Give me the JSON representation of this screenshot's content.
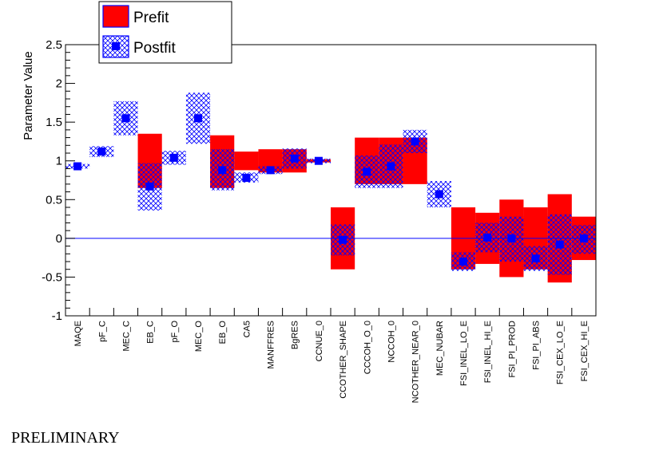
{
  "chart_data": {
    "type": "error-band",
    "title": "",
    "xlabel": "",
    "ylabel": "Parameter Value",
    "ylim": [
      -1,
      2.5
    ],
    "yticks": [
      "-1",
      "-0.5",
      "0",
      "0.5",
      "1",
      "1.5",
      "2",
      "2.5"
    ],
    "reference_line": 0,
    "categories": [
      "MAQE",
      "pF_C",
      "MEC_C",
      "EB_C",
      "pF_O",
      "MEC_O",
      "EB_O",
      "CA5",
      "MANFFRES",
      "BgRES",
      "CCNUE_0",
      "CCOTHER_SHAPE",
      "CCCOH_O_0",
      "NCCOH_0",
      "NCOTHER_NEAR_0",
      "MEC_NUBAR",
      "FSI_INEL_LO_E",
      "FSI_INEL_HI_E",
      "FSI_PI_PROD",
      "FSI_PI_ABS",
      "FSI_CEX_LO_E",
      "FSI_CEX_HI_E"
    ],
    "series": [
      {
        "name": "Prefit",
        "color": "#ff0000",
        "style": "solid",
        "low": [
          null,
          null,
          null,
          0.65,
          null,
          null,
          0.65,
          0.88,
          0.85,
          0.85,
          0.98,
          -0.4,
          0.7,
          0.7,
          0.7,
          null,
          -0.4,
          -0.33,
          -0.5,
          -0.4,
          -0.57,
          -0.28
        ],
        "high": [
          null,
          null,
          null,
          1.35,
          null,
          null,
          1.33,
          1.12,
          1.15,
          1.15,
          1.02,
          0.4,
          1.3,
          1.3,
          1.3,
          null,
          0.4,
          0.33,
          0.5,
          0.4,
          0.57,
          0.28
        ]
      },
      {
        "name": "Postfit",
        "color": "#0000ff",
        "style": "crosshatch",
        "values": [
          0.93,
          1.12,
          1.55,
          0.67,
          1.04,
          1.55,
          0.88,
          0.78,
          0.88,
          1.03,
          1.0,
          -0.02,
          0.86,
          0.93,
          1.25,
          0.57,
          -0.3,
          0.01,
          0.0,
          -0.26,
          -0.08,
          0.0
        ],
        "low": [
          0.9,
          1.05,
          1.33,
          0.36,
          0.95,
          1.22,
          0.62,
          0.72,
          0.83,
          0.9,
          0.97,
          -0.22,
          0.65,
          0.65,
          1.1,
          0.4,
          -0.42,
          -0.18,
          -0.3,
          -0.42,
          -0.47,
          -0.2
        ],
        "high": [
          0.96,
          1.19,
          1.77,
          0.97,
          1.13,
          1.88,
          1.15,
          0.85,
          0.93,
          1.16,
          1.03,
          0.18,
          1.07,
          1.21,
          1.4,
          0.74,
          -0.18,
          0.2,
          0.28,
          -0.1,
          0.31,
          0.17
        ]
      }
    ],
    "legend": {
      "placement": "top-left",
      "entries": [
        "Prefit",
        "Postfit"
      ]
    }
  },
  "footer": {
    "watermark": "PRELIMINARY"
  }
}
